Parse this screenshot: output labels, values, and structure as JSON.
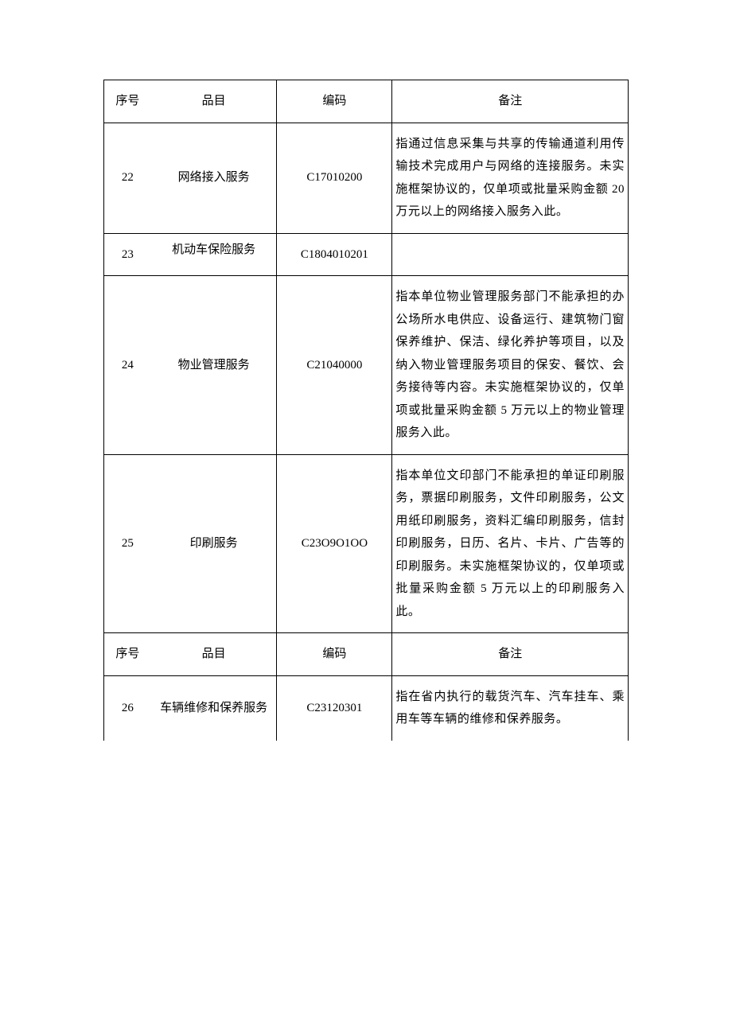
{
  "headers": {
    "seq": "序号",
    "item": "品目",
    "code": "编码",
    "note": "备注"
  },
  "rows": [
    {
      "seq": "22",
      "item": "网络接入服务",
      "code": "C17010200",
      "note": "指通过信息采集与共享的传输通道利用传输技术完成用户与网络的连接服务。未实施框架协议的，仅单项或批量采购金额 20 万元以上的网络接入服务入此。"
    },
    {
      "seq": "23",
      "item": "机动车保险服务",
      "code": "C1804010201",
      "note": ""
    },
    {
      "seq": "24",
      "item": "物业管理服务",
      "code": "C21040000",
      "note": "指本单位物业管理服务部门不能承担的办公场所水电供应、设备运行、建筑物门窗保养维护、保洁、绿化养护等项目，以及纳入物业管理服务项目的保安、餐饮、会务接待等内容。未实施框架协议的，仅单项或批量采购金额 5 万元以上的物业管理服务入此。"
    },
    {
      "seq": "25",
      "item": "印刷服务",
      "code": "C23O9O1OO",
      "note": "指本单位文印部门不能承担的单证印刷服务，票据印刷服务，文件印刷服务，公文用纸印刷服务，资料汇编印刷服务，信封印刷服务，日历、名片、卡片、广告等的印刷服务。未实施框架协议的，仅单项或批量采购金额 5 万元以上的印刷服务入此。"
    }
  ],
  "headers2": {
    "seq": "序号",
    "item": "品目",
    "code": "编码",
    "note": "备注"
  },
  "rows2": [
    {
      "seq": "26",
      "item": "车辆维修和保养服务",
      "code": "C23120301",
      "note": "指在省内执行的载货汽车、汽车挂车、乘用车等车辆的维修和保养服务。"
    }
  ]
}
